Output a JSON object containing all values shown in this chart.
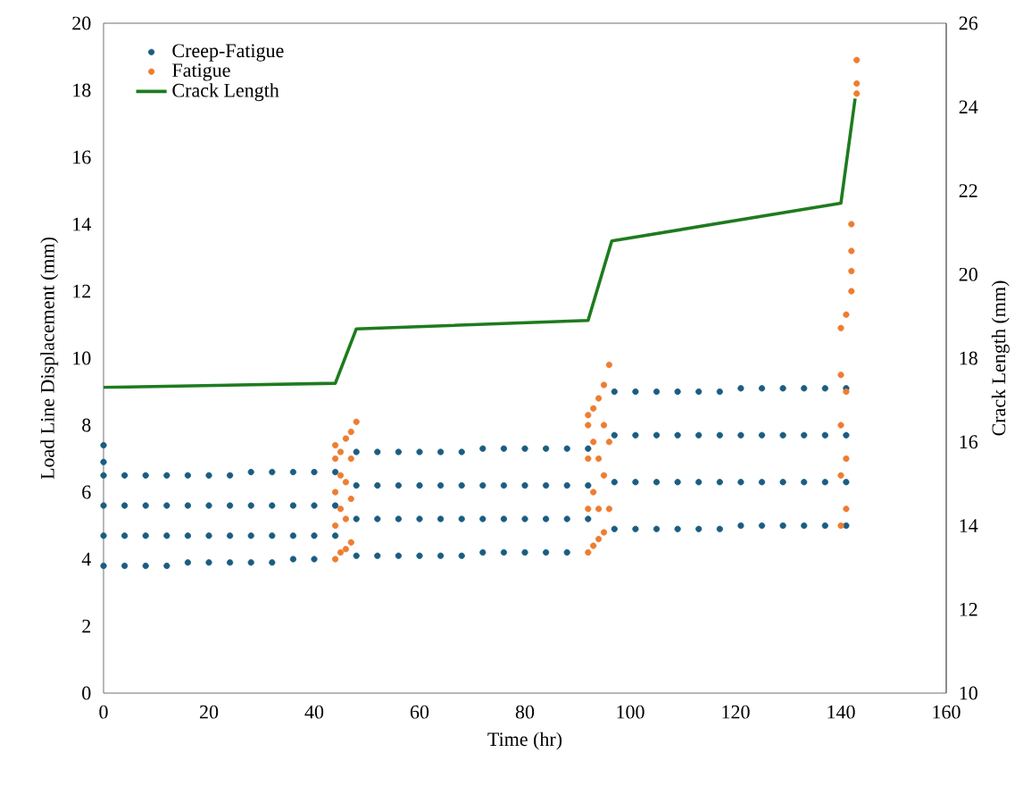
{
  "chart_data": {
    "type": "scatter",
    "xlabel": "Time (hr)",
    "ylabel": "Load Line Displacement (mm)",
    "y2label": "Crack Length (mm)",
    "xlim": [
      0,
      160
    ],
    "xticks": [
      0,
      20,
      40,
      60,
      80,
      100,
      120,
      140,
      160
    ],
    "ylim": [
      0,
      20
    ],
    "yticks": [
      0,
      2,
      4,
      6,
      8,
      10,
      12,
      14,
      16,
      18,
      20
    ],
    "y2lim": [
      10,
      26
    ],
    "y2ticks": [
      10,
      12,
      14,
      16,
      18,
      20,
      22,
      24,
      26
    ],
    "legend": "top left",
    "series": [
      {
        "name": "Creep-Fatigue",
        "color": "#1a5d80",
        "marker": "circle",
        "x": [
          0,
          0,
          0,
          4,
          8,
          12,
          16,
          20,
          24,
          28,
          32,
          36,
          40,
          0,
          4,
          8,
          12,
          16,
          20,
          24,
          28,
          32,
          36,
          40,
          44,
          0,
          4,
          8,
          12,
          16,
          20,
          24,
          28,
          32,
          36,
          40,
          44,
          0,
          4,
          8,
          12,
          16,
          20,
          24,
          28,
          32,
          36,
          40,
          44,
          48,
          52,
          56,
          60,
          64,
          68,
          72,
          76,
          80,
          84,
          88,
          48,
          52,
          56,
          60,
          64,
          68,
          72,
          76,
          80,
          84,
          88,
          92,
          48,
          52,
          56,
          60,
          64,
          68,
          72,
          76,
          80,
          84,
          88,
          92,
          48,
          52,
          56,
          60,
          64,
          68,
          72,
          76,
          80,
          84,
          88,
          92,
          97,
          101,
          105,
          109,
          113,
          117,
          121,
          125,
          129,
          133,
          137,
          141,
          97,
          101,
          105,
          109,
          113,
          117,
          121,
          125,
          129,
          133,
          137,
          141,
          97,
          101,
          105,
          109,
          113,
          117,
          121,
          125,
          129,
          133,
          137,
          141,
          97,
          101,
          105,
          109,
          113,
          117,
          121,
          125,
          129,
          133,
          137,
          141
        ],
        "values": [
          7.4,
          6.9,
          3.8,
          3.8,
          3.8,
          3.8,
          3.9,
          3.9,
          3.9,
          3.9,
          3.9,
          4.0,
          4.0,
          4.7,
          4.7,
          4.7,
          4.7,
          4.7,
          4.7,
          4.7,
          4.7,
          4.7,
          4.7,
          4.7,
          4.7,
          5.6,
          5.6,
          5.6,
          5.6,
          5.6,
          5.6,
          5.6,
          5.6,
          5.6,
          5.6,
          5.6,
          5.6,
          6.5,
          6.5,
          6.5,
          6.5,
          6.5,
          6.5,
          6.5,
          6.6,
          6.6,
          6.6,
          6.6,
          6.6,
          4.1,
          4.1,
          4.1,
          4.1,
          4.1,
          4.1,
          4.2,
          4.2,
          4.2,
          4.2,
          4.2,
          5.2,
          5.2,
          5.2,
          5.2,
          5.2,
          5.2,
          5.2,
          5.2,
          5.2,
          5.2,
          5.2,
          5.2,
          6.2,
          6.2,
          6.2,
          6.2,
          6.2,
          6.2,
          6.2,
          6.2,
          6.2,
          6.2,
          6.2,
          6.2,
          7.2,
          7.2,
          7.2,
          7.2,
          7.2,
          7.2,
          7.3,
          7.3,
          7.3,
          7.3,
          7.3,
          7.3,
          4.9,
          4.9,
          4.9,
          4.9,
          4.9,
          4.9,
          5.0,
          5.0,
          5.0,
          5.0,
          5.0,
          5.0,
          6.3,
          6.3,
          6.3,
          6.3,
          6.3,
          6.3,
          6.3,
          6.3,
          6.3,
          6.3,
          6.3,
          6.3,
          7.7,
          7.7,
          7.7,
          7.7,
          7.7,
          7.7,
          7.7,
          7.7,
          7.7,
          7.7,
          7.7,
          7.7,
          9.0,
          9.0,
          9.0,
          9.0,
          9.0,
          9.0,
          9.1,
          9.1,
          9.1,
          9.1,
          9.1,
          9.1
        ]
      },
      {
        "name": "Fatigue",
        "color": "#ed7d31",
        "marker": "circle",
        "x": [
          44,
          44,
          44,
          44,
          44,
          45,
          45,
          45,
          45,
          46,
          46,
          46,
          46,
          47,
          47,
          47,
          47,
          48,
          92,
          92,
          92,
          92,
          92,
          93,
          93,
          93,
          93,
          94,
          94,
          94,
          94,
          95,
          95,
          95,
          95,
          96,
          96,
          96,
          140,
          140,
          140,
          140,
          140,
          141,
          141,
          141,
          141,
          142,
          142,
          142,
          142,
          143,
          143,
          143
        ],
        "values": [
          4.0,
          5.0,
          6.0,
          7.0,
          7.4,
          4.2,
          5.5,
          6.5,
          7.2,
          4.3,
          5.2,
          6.3,
          7.6,
          4.5,
          5.8,
          7.0,
          7.8,
          8.1,
          4.2,
          5.5,
          7.0,
          8.0,
          8.3,
          4.4,
          6.0,
          7.5,
          8.5,
          4.6,
          5.5,
          7.0,
          8.8,
          4.8,
          6.5,
          8.0,
          9.2,
          5.5,
          7.5,
          9.8,
          5.0,
          6.5,
          8.0,
          9.5,
          10.9,
          5.5,
          7.0,
          9.0,
          11.3,
          12.0,
          12.6,
          13.2,
          14.0,
          17.9,
          18.2,
          18.9
        ]
      },
      {
        "name": "Crack Length",
        "color": "#1e7b1e",
        "type": "line",
        "marker": "none",
        "axis": "y2",
        "x": [
          0,
          44,
          48,
          92,
          96.5,
          140,
          142.7
        ],
        "values": [
          17.3,
          17.4,
          18.7,
          18.9,
          20.8,
          21.7,
          24.2
        ]
      }
    ]
  }
}
